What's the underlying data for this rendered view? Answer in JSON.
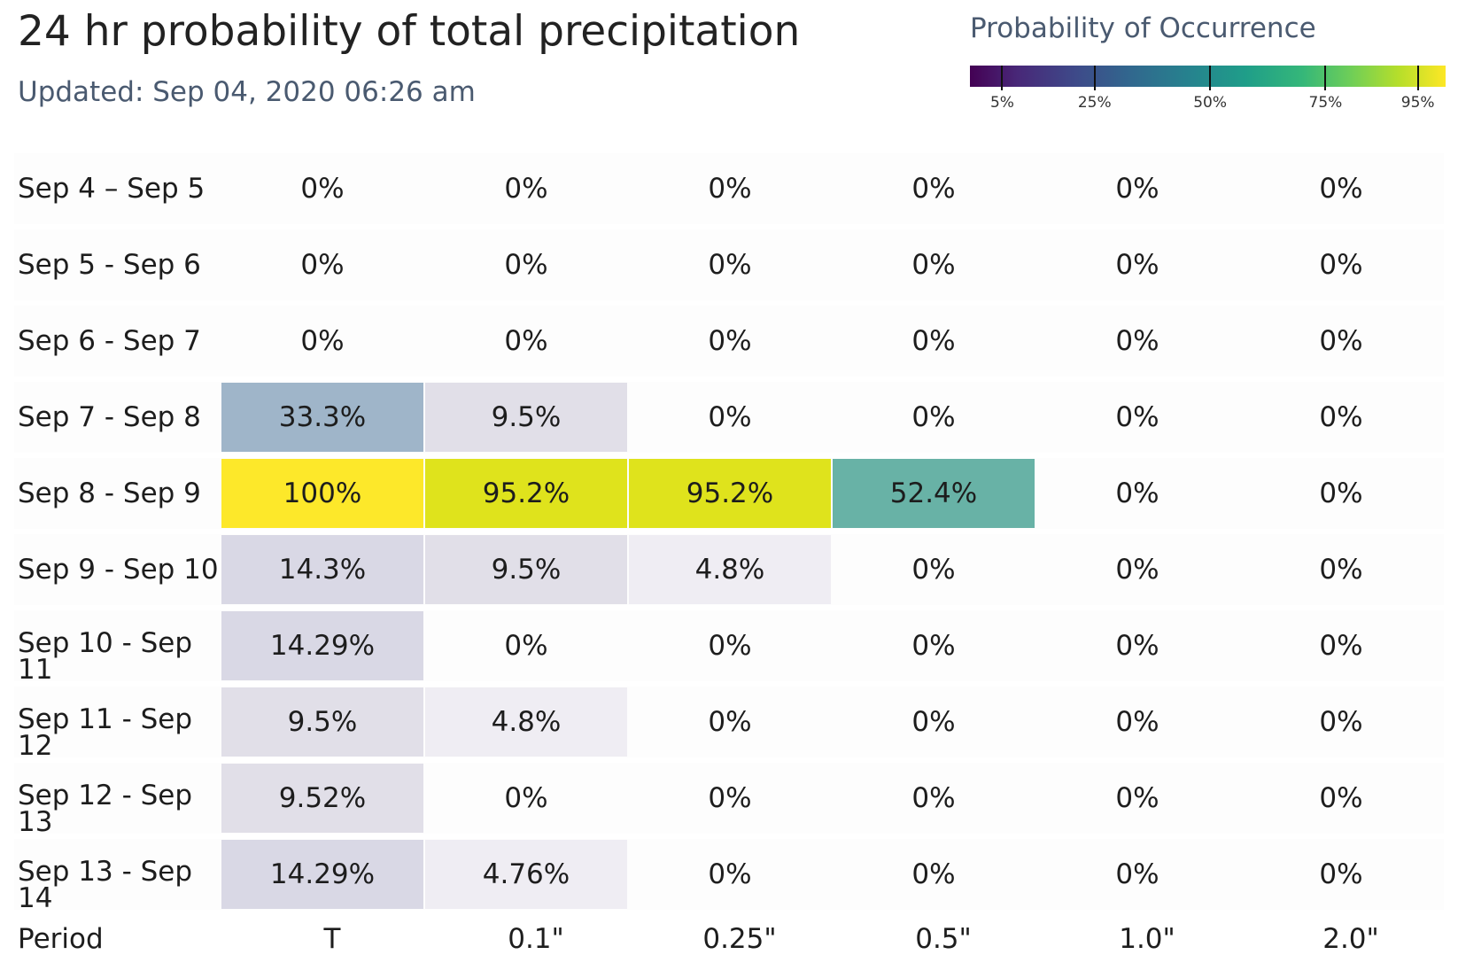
{
  "title": "24 hr probability of total precipitation",
  "updated": "Updated: Sep 04, 2020 06:26 am",
  "legend": {
    "title": "Probability of Occurrence",
    "ticks": [
      {
        "label": "5%",
        "value": 5
      },
      {
        "label": "25%",
        "value": 25
      },
      {
        "label": "50%",
        "value": 50
      },
      {
        "label": "75%",
        "value": 75
      },
      {
        "label": "95%",
        "value": 95
      }
    ]
  },
  "chart_data": {
    "type": "heatmap",
    "title": "24 hr probability of total precipitation",
    "xlabel": "",
    "ylabel": "",
    "x_header": "Period",
    "x_categories": [
      "T",
      "0.1\"",
      "0.25\"",
      "0.5\"",
      "1.0\"",
      "2.0\""
    ],
    "y_categories": [
      "Sep 4 – Sep 5",
      "Sep 5 - Sep 6",
      "Sep 6 - Sep 7",
      "Sep 7 - Sep 8",
      "Sep 8 - Sep 9",
      "Sep 9 - Sep 10",
      "Sep 10 - Sep 11",
      "Sep 11 - Sep 12",
      "Sep 12 - Sep 13",
      "Sep 13 - Sep 14"
    ],
    "labels": [
      [
        "0%",
        "0%",
        "0%",
        "0%",
        "0%",
        "0%"
      ],
      [
        "0%",
        "0%",
        "0%",
        "0%",
        "0%",
        "0%"
      ],
      [
        "0%",
        "0%",
        "0%",
        "0%",
        "0%",
        "0%"
      ],
      [
        "33.3%",
        "9.5%",
        "0%",
        "0%",
        "0%",
        "0%"
      ],
      [
        "100%",
        "95.2%",
        "95.2%",
        "52.4%",
        "0%",
        "0%"
      ],
      [
        "14.3%",
        "9.5%",
        "4.8%",
        "0%",
        "0%",
        "0%"
      ],
      [
        "14.29%",
        "0%",
        "0%",
        "0%",
        "0%",
        "0%"
      ],
      [
        "9.5%",
        "4.8%",
        "0%",
        "0%",
        "0%",
        "0%"
      ],
      [
        "9.52%",
        "0%",
        "0%",
        "0%",
        "0%",
        "0%"
      ],
      [
        "14.29%",
        "4.76%",
        "0%",
        "0%",
        "0%",
        "0%"
      ]
    ],
    "values": [
      [
        0,
        0,
        0,
        0,
        0,
        0
      ],
      [
        0,
        0,
        0,
        0,
        0,
        0
      ],
      [
        0,
        0,
        0,
        0,
        0,
        0
      ],
      [
        33.3,
        9.5,
        0,
        0,
        0,
        0
      ],
      [
        100,
        95.2,
        95.2,
        52.4,
        0,
        0
      ],
      [
        14.3,
        9.5,
        4.8,
        0,
        0,
        0
      ],
      [
        14.29,
        0,
        0,
        0,
        0,
        0
      ],
      [
        9.5,
        4.8,
        0,
        0,
        0,
        0
      ],
      [
        9.52,
        0,
        0,
        0,
        0,
        0
      ],
      [
        14.29,
        4.76,
        0,
        0,
        0,
        0
      ]
    ],
    "cell_colors": {
      "33.3": "#9fb5c9",
      "100": "#fde82a",
      "95.2": "#dfe31c",
      "52.4": "#68b2a6",
      "14.3": "#d9d8e5",
      "14.29": "#d9d8e5",
      "9.5": "#e1dfe8",
      "9.52": "#e1dfe8",
      "4.8": "#efedf3",
      "4.76": "#efedf3"
    }
  }
}
